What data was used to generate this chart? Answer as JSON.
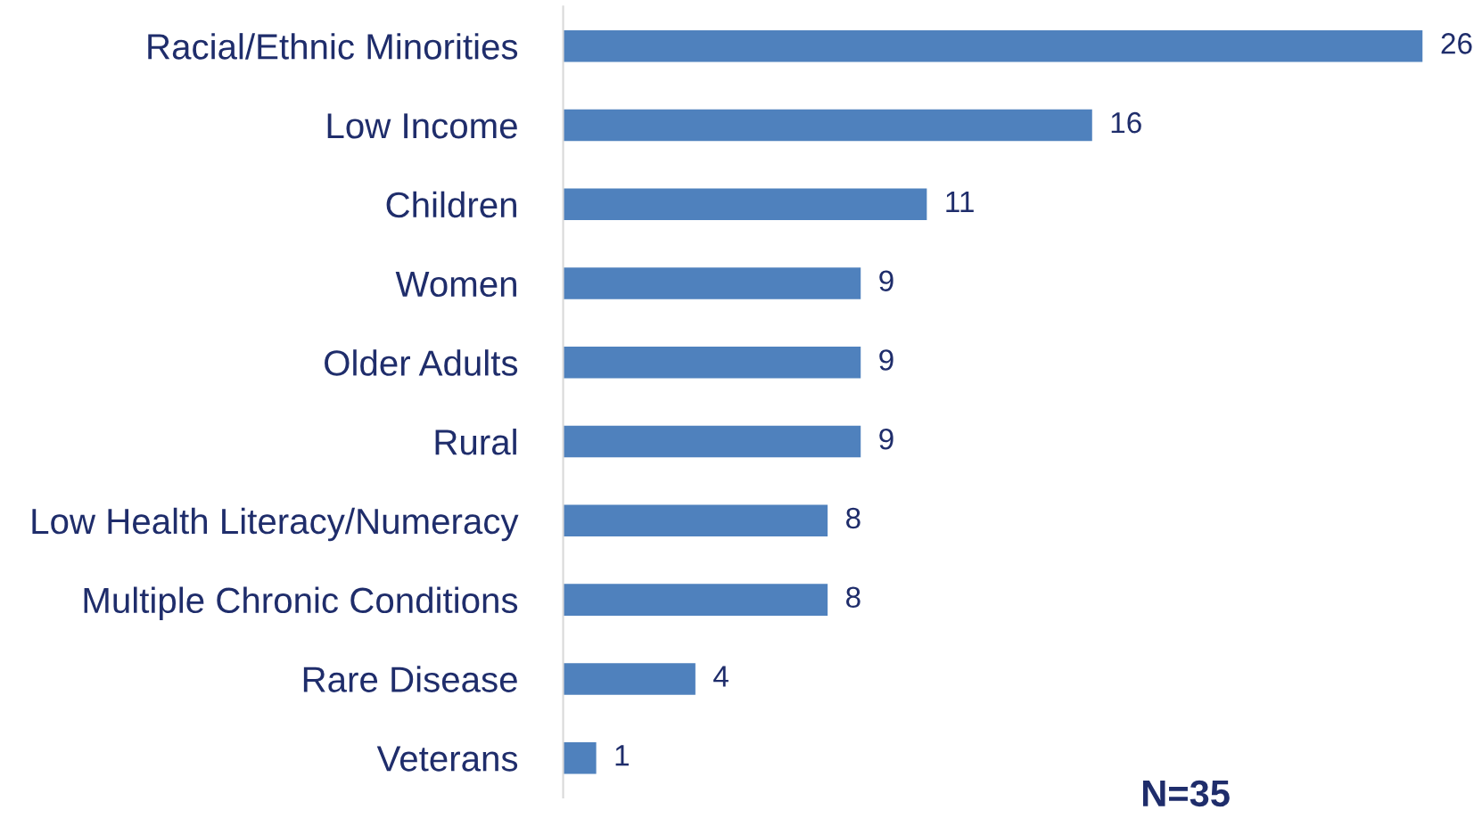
{
  "chart_data": {
    "type": "bar",
    "orientation": "horizontal",
    "categories": [
      "Racial/Ethnic Minorities",
      "Low Income",
      "Children",
      "Women",
      "Older Adults",
      "Rural",
      "Low Health Literacy/Numeracy",
      "Multiple Chronic Conditions",
      "Rare Disease",
      "Veterans"
    ],
    "values": [
      26,
      16,
      11,
      9,
      9,
      9,
      8,
      8,
      4,
      1
    ],
    "color": "#4f81bd",
    "data_labels": true,
    "annotations": [
      "N=35"
    ]
  }
}
